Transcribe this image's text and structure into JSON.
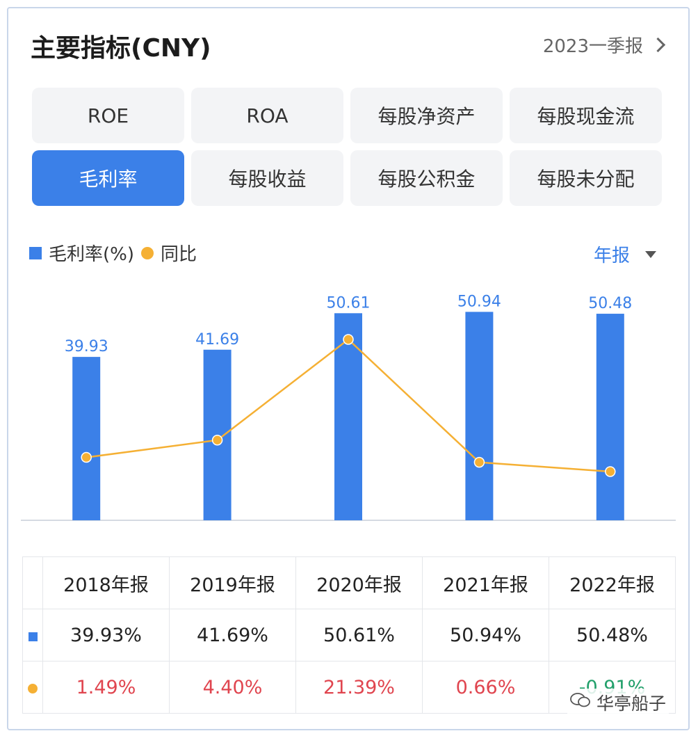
{
  "header": {
    "title": "主要指标(CNY)",
    "period": "2023一季报"
  },
  "tabs": [
    {
      "label": "ROE"
    },
    {
      "label": "ROA"
    },
    {
      "label": "每股净资产"
    },
    {
      "label": "每股现金流"
    },
    {
      "label": "毛利率"
    },
    {
      "label": "每股收益"
    },
    {
      "label": "每股公积金"
    },
    {
      "label": "每股未分配"
    }
  ],
  "active_tab": "毛利率",
  "legend": {
    "bar": "毛利率(%)",
    "line": "同比"
  },
  "frequency": "年报",
  "colors": {
    "bar": "#3b80e8",
    "line": "#f5b034",
    "up": "#e0454f",
    "down": "#22a06b"
  },
  "chart_data": {
    "type": "bar",
    "categories": [
      "2018年报",
      "2019年报",
      "2020年报",
      "2021年报",
      "2022年报"
    ],
    "series": [
      {
        "name": "毛利率(%)",
        "type": "bar",
        "values": [
          39.93,
          41.69,
          50.61,
          50.94,
          50.48
        ]
      },
      {
        "name": "同比",
        "type": "line",
        "values": [
          1.49,
          4.4,
          21.39,
          0.66,
          -0.91
        ]
      }
    ],
    "data_labels": [
      "39.93",
      "41.69",
      "50.61",
      "50.94",
      "50.48"
    ]
  },
  "table": {
    "headers": [
      "2018年报",
      "2019年报",
      "2020年报",
      "2021年报",
      "2022年报"
    ],
    "bar_row": [
      "39.93%",
      "41.69%",
      "50.61%",
      "50.94%",
      "50.48%"
    ],
    "yoy_row": [
      "1.49%",
      "4.40%",
      "21.39%",
      "0.66%",
      "-0.91%"
    ]
  },
  "watermark": "华亭船子"
}
